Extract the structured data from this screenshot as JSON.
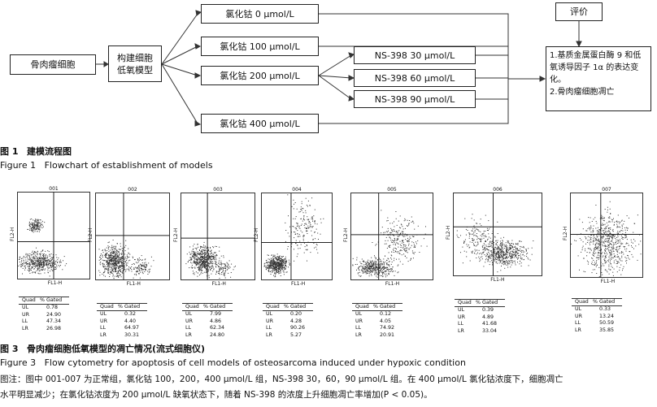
{
  "flowchart": {
    "start": "骨肉瘤细胞",
    "model": "构建细胞低氧模型",
    "groups": [
      "氯化钴 0 μmol/L",
      "氯化钴 100 μmol/L",
      "氯化钴 200 μmol/L",
      "氯化钴 400 μmol/L"
    ],
    "ns_groups": [
      "NS-398 30 μmol/L",
      "NS-398 60 μmol/L",
      "NS-398 90 μmol/L"
    ],
    "eval_label": "评价",
    "eval_items": [
      "1.基质金属蛋白酶 9 和低氧诱导因子 1α 的表达变化。",
      "2.骨肉瘤细胞凋亡"
    ]
  },
  "fig1": {
    "cn_label": "图 1",
    "cn_title": "建模流程图",
    "en_label": "Figure 1",
    "en_title": "Flowchart of establishment of models"
  },
  "cytometry": {
    "x_axis_label": "FL1-H",
    "y_axis_label": "FL2-H",
    "stats_header": [
      "Quad",
      "% Gated"
    ],
    "quadrant_names": [
      "UL",
      "UR",
      "LL",
      "LR"
    ],
    "panels": [
      {
        "id": "001",
        "values": [
          "0.78",
          "24.90",
          "47.34",
          "26.98"
        ]
      },
      {
        "id": "002",
        "values": [
          "0.32",
          "4.40",
          "64.97",
          "30.31"
        ]
      },
      {
        "id": "003",
        "values": [
          "7.99",
          "4.86",
          "62.34",
          "24.80"
        ]
      },
      {
        "id": "004",
        "values": [
          "0.20",
          "4.28",
          "90.26",
          "5.27"
        ]
      },
      {
        "id": "005",
        "values": [
          "0.12",
          "4.05",
          "74.92",
          "20.91"
        ]
      },
      {
        "id": "006",
        "values": [
          "0.39",
          "4.89",
          "41.68",
          "33.04"
        ]
      },
      {
        "id": "007",
        "values": [
          "0.33",
          "13.24",
          "50.59",
          "35.85"
        ]
      }
    ]
  },
  "fig3": {
    "cn_label": "图 3",
    "cn_title": "骨肉瘤细胞低氧模型的凋亡情况(流式细胞仪)",
    "en_label": "Figure 3",
    "en_title": "Flow cytometry for apoptosis of cell models of osteosarcoma induced under hypoxic condition",
    "note_line1": "图注：图中 001-007 为正常组，氯化钴 100，200，400 μmol/L 组，NS-398 30，60，90 μmol/L 组。在 400 μmol/L 氯化钴浓度下，细胞凋亡",
    "note_line2": "水平明显减少；在氯化钴浓度为 200 μmol/L 缺氧状态下，随着 NS-398 的浓度上升细胞凋亡率增加(P < 0.05)。"
  }
}
